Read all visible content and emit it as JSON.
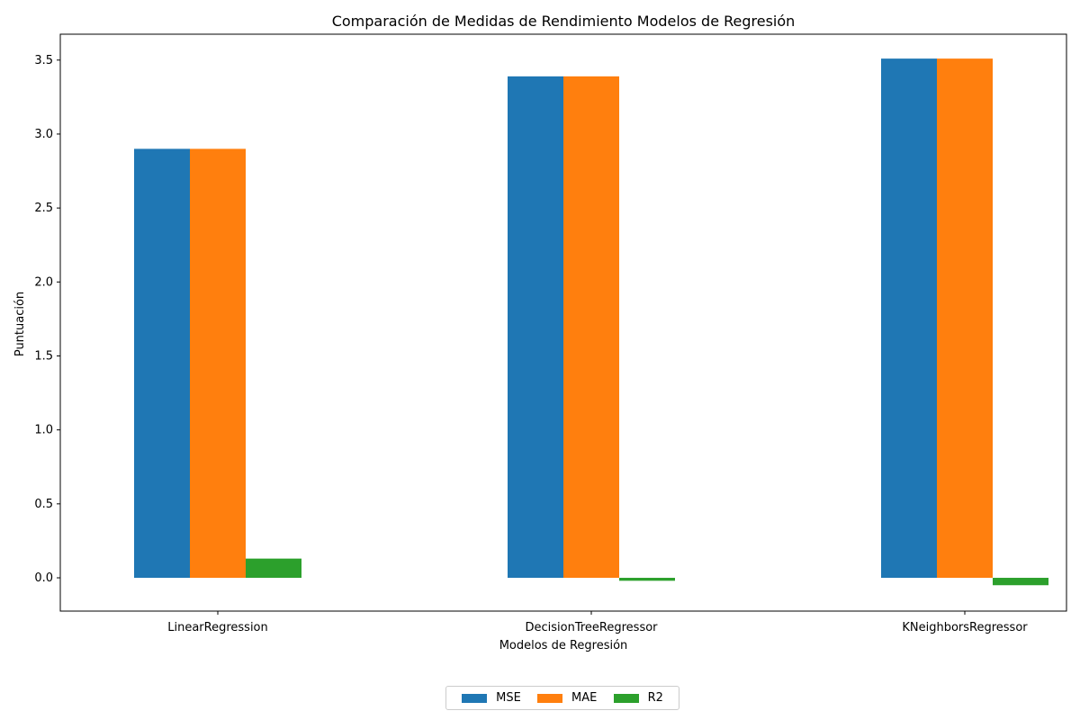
{
  "chart_data": {
    "type": "bar",
    "title": "Comparación de Medidas de Rendimiento Modelos de Regresión",
    "xlabel": "Modelos de Regresión",
    "ylabel": "Puntuación",
    "categories": [
      "LinearRegression",
      "DecisionTreeRegressor",
      "KNeighborsRegressor"
    ],
    "series": [
      {
        "name": "MSE",
        "color": "#1f77b4",
        "values": [
          2.9,
          3.39,
          3.51
        ]
      },
      {
        "name": "MAE",
        "color": "#ff7f0e",
        "values": [
          2.9,
          3.39,
          3.51
        ]
      },
      {
        "name": "R2",
        "color": "#2ca02c",
        "values": [
          0.13,
          -0.02,
          -0.05
        ]
      }
    ],
    "ylim": [
      -0.225,
      3.675
    ],
    "yticks": [
      0.0,
      0.5,
      1.0,
      1.5,
      2.0,
      2.5,
      3.0,
      3.5
    ],
    "ytick_labels": [
      "0.0",
      "0.5",
      "1.0",
      "1.5",
      "2.0",
      "2.5",
      "3.0",
      "3.5"
    ],
    "grid": false,
    "legend_position": "bottom-center"
  }
}
